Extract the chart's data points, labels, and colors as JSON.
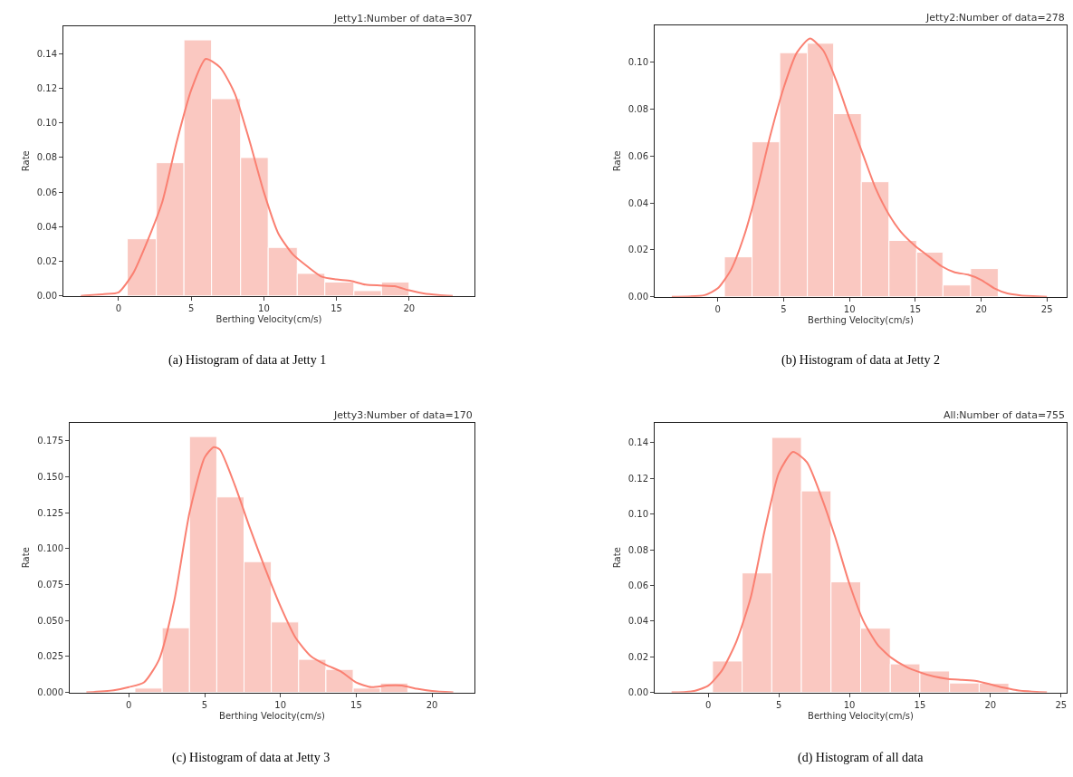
{
  "chart_data": [
    {
      "type": "histogram",
      "title": "Jetty1:Number of data=307",
      "xlabel": "Berthing Velocity(cm/s)",
      "ylabel": "Rate",
      "annotations": [
        "(a) Histogram of data at Jetty 1"
      ],
      "color": "#fac8c1",
      "bins": [
        0.6,
        2.6,
        4.5,
        6.4,
        8.4,
        10.3,
        12.3,
        14.2,
        16.2,
        18.1,
        20.0
      ],
      "values": [
        0.033,
        0.077,
        0.148,
        0.114,
        0.08,
        0.028,
        0.013,
        0.008,
        0.003,
        0.008
      ],
      "series": [
        {
          "type": "line",
          "color": "#fa8072",
          "x": [
            -2.6,
            -1,
            0,
            1,
            2,
            3,
            4,
            5,
            6,
            7,
            8,
            9,
            10,
            11,
            12,
            13,
            14,
            15,
            16,
            17,
            18,
            19,
            20,
            21,
            22,
            23
          ],
          "values": [
            0,
            0.001,
            0.002,
            0.013,
            0.032,
            0.054,
            0.089,
            0.119,
            0.137,
            0.132,
            0.117,
            0.09,
            0.06,
            0.036,
            0.024,
            0.017,
            0.011,
            0.0095,
            0.0086,
            0.0065,
            0.006,
            0.0056,
            0.0032,
            0.0014,
            0.0005,
            0
          ]
        }
      ],
      "xlim": [
        -3.8,
        24.5
      ],
      "ylim": [
        0,
        0.156
      ],
      "xticks": [
        0,
        5,
        10,
        15,
        20
      ],
      "yticks": [
        {
          "value": 0,
          "label": "0.00"
        },
        {
          "value": 0.02,
          "label": "0.02"
        },
        {
          "value": 0.04,
          "label": "0.04"
        },
        {
          "value": 0.06,
          "label": "0.06"
        },
        {
          "value": 0.08,
          "label": "0.08"
        },
        {
          "value": 0.1,
          "label": "0.10"
        },
        {
          "value": 0.12,
          "label": "0.12"
        },
        {
          "value": 0.14,
          "label": "0.14"
        }
      ]
    },
    {
      "type": "histogram",
      "title": "Jetty2:Number of data=278",
      "xlabel": "Berthing Velocity(cm/s)",
      "ylabel": "Rate",
      "annotations": [
        "(b) Histogram of data at Jetty 2"
      ],
      "color": "#fac8c1",
      "bins": [
        0.5,
        2.6,
        4.7,
        6.8,
        8.8,
        10.9,
        13.0,
        15.1,
        17.1,
        19.2,
        21.3
      ],
      "values": [
        0.017,
        0.066,
        0.104,
        0.108,
        0.078,
        0.049,
        0.024,
        0.019,
        0.005,
        0.012
      ],
      "series": [
        {
          "type": "line",
          "color": "#fa8072",
          "x": [
            -3.5,
            -1,
            0,
            1,
            2,
            3,
            4,
            5,
            6,
            7,
            8,
            9,
            10,
            11,
            12,
            13,
            14,
            15,
            16,
            17,
            18,
            19,
            20,
            21,
            22,
            23,
            25
          ],
          "values": [
            0,
            0.0007,
            0.0036,
            0.0115,
            0.026,
            0.046,
            0.069,
            0.089,
            0.104,
            0.11,
            0.105,
            0.092,
            0.076,
            0.061,
            0.046,
            0.035,
            0.027,
            0.0216,
            0.0173,
            0.013,
            0.0104,
            0.0094,
            0.0072,
            0.0036,
            0.0014,
            0.0006,
            0
          ]
        }
      ],
      "xlim": [
        -4.8,
        26.5
      ],
      "ylim": [
        0,
        0.1157
      ],
      "xticks": [
        0,
        5,
        10,
        15,
        20,
        25
      ],
      "yticks": [
        {
          "value": 0,
          "label": "0.00"
        },
        {
          "value": 0.02,
          "label": "0.02"
        },
        {
          "value": 0.04,
          "label": "0.04"
        },
        {
          "value": 0.06,
          "label": "0.06"
        },
        {
          "value": 0.08,
          "label": "0.08"
        },
        {
          "value": 0.1,
          "label": "0.10"
        }
      ]
    },
    {
      "type": "histogram",
      "title": "Jetty3:Number of data=170",
      "xlabel": "Berthing Velocity(cm/s)",
      "ylabel": "Rate",
      "annotations": [
        "(c) Histogram of data at Jetty 3"
      ],
      "color": "#fac8c1",
      "bins": [
        0.4,
        2.2,
        4.0,
        5.8,
        7.6,
        9.4,
        11.2,
        13.0,
        14.8,
        16.6,
        18.4
      ],
      "values": [
        0.003,
        0.045,
        0.178,
        0.136,
        0.091,
        0.049,
        0.023,
        0.016,
        0.003,
        0.0065
      ],
      "series": [
        {
          "type": "line",
          "color": "#fa8072",
          "x": [
            -2.8,
            -1,
            0,
            1,
            2,
            3,
            4,
            5,
            5.6,
            6,
            7,
            8,
            9,
            10,
            11,
            12,
            13,
            14,
            15,
            16,
            17,
            18,
            19,
            20,
            21.4
          ],
          "values": [
            0,
            0.0015,
            0.0037,
            0.007,
            0.023,
            0.064,
            0.125,
            0.1635,
            0.1707,
            0.169,
            0.144,
            0.114,
            0.086,
            0.06,
            0.038,
            0.0253,
            0.0192,
            0.0145,
            0.0069,
            0.0037,
            0.0048,
            0.0048,
            0.0026,
            0.001,
            0
          ]
        }
      ],
      "xlim": [
        -3.9,
        22.8
      ],
      "ylim": [
        0,
        0.1877
      ],
      "xticks": [
        0,
        5,
        10,
        15,
        20
      ],
      "yticks": [
        {
          "value": 0,
          "label": "0.000"
        },
        {
          "value": 0.025,
          "label": "0.025"
        },
        {
          "value": 0.05,
          "label": "0.050"
        },
        {
          "value": 0.075,
          "label": "0.075"
        },
        {
          "value": 0.1,
          "label": "0.100"
        },
        {
          "value": 0.125,
          "label": "0.125"
        },
        {
          "value": 0.15,
          "label": "0.150"
        },
        {
          "value": 0.175,
          "label": "0.175"
        }
      ]
    },
    {
      "type": "histogram",
      "title": "All:Number of data=755",
      "xlabel": "Berthing Velocity(cm/s)",
      "ylabel": "Rate",
      "annotations": [
        "(d) Histogram of all data"
      ],
      "color": "#fac8c1",
      "bins": [
        0.3,
        2.4,
        4.5,
        6.6,
        8.7,
        10.8,
        12.9,
        15.0,
        17.1,
        19.2,
        21.3
      ],
      "values": [
        0.0176,
        0.067,
        0.143,
        0.113,
        0.062,
        0.036,
        0.016,
        0.012,
        0.0053,
        0.0051
      ],
      "series": [
        {
          "type": "line",
          "color": "#fa8072",
          "x": [
            -2.6,
            -1,
            0,
            1,
            2,
            3,
            4,
            5,
            6,
            7,
            8,
            9,
            10,
            11,
            12,
            13,
            14,
            15,
            16,
            17,
            18,
            19,
            20,
            21,
            22,
            24
          ],
          "values": [
            0,
            0.0008,
            0.0038,
            0.0127,
            0.0287,
            0.053,
            0.091,
            0.123,
            0.1349,
            0.129,
            0.11,
            0.087,
            0.061,
            0.04,
            0.0268,
            0.0193,
            0.0145,
            0.0113,
            0.0089,
            0.0076,
            0.007,
            0.0064,
            0.0045,
            0.0026,
            0.0011,
            0
          ]
        }
      ],
      "xlim": [
        -3.8,
        25.4
      ],
      "ylim": [
        0,
        0.1513
      ],
      "xticks": [
        0,
        5,
        10,
        15,
        20,
        25
      ],
      "yticks": [
        {
          "value": 0,
          "label": "0.00"
        },
        {
          "value": 0.02,
          "label": "0.02"
        },
        {
          "value": 0.04,
          "label": "0.04"
        },
        {
          "value": 0.06,
          "label": "0.06"
        },
        {
          "value": 0.08,
          "label": "0.08"
        },
        {
          "value": 0.1,
          "label": "0.10"
        },
        {
          "value": 0.12,
          "label": "0.12"
        },
        {
          "value": 0.14,
          "label": "0.14"
        }
      ]
    }
  ]
}
